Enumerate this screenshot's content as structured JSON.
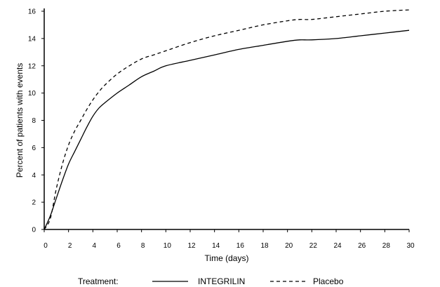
{
  "chart_data": {
    "type": "line",
    "title": "",
    "xlabel": "Time (days)",
    "ylabel": "Percent of patients with events",
    "xlim": [
      0,
      30
    ],
    "ylim": [
      0,
      16
    ],
    "xticks": [
      0,
      2,
      4,
      6,
      8,
      10,
      12,
      14,
      16,
      18,
      20,
      22,
      24,
      26,
      28,
      30
    ],
    "yticks": [
      0,
      2,
      4,
      6,
      8,
      10,
      12,
      14,
      16
    ],
    "grid": false,
    "legend": {
      "placement": "bottom",
      "title": "Treatment:"
    },
    "series": [
      {
        "name": "INTEGRILIN",
        "style": "solid",
        "color": "#000000",
        "x": [
          0,
          0.5,
          1,
          1.5,
          2,
          2.5,
          3,
          3.5,
          4,
          4.5,
          5,
          6,
          7,
          8,
          9,
          10,
          12,
          14,
          16,
          18,
          20,
          21,
          22,
          24,
          26,
          28,
          30
        ],
        "y": [
          0,
          1.0,
          2.3,
          3.6,
          4.8,
          5.7,
          6.6,
          7.5,
          8.3,
          8.9,
          9.3,
          10.0,
          10.6,
          11.2,
          11.6,
          12.0,
          12.4,
          12.8,
          13.2,
          13.5,
          13.8,
          13.9,
          13.9,
          14.0,
          14.2,
          14.4,
          14.6
        ]
      },
      {
        "name": "Placebo",
        "style": "dashed",
        "color": "#000000",
        "x": [
          0,
          0.5,
          1,
          1.5,
          2,
          2.5,
          3,
          3.5,
          4,
          4.5,
          5,
          6,
          7,
          8,
          9,
          10,
          12,
          14,
          16,
          18,
          20,
          21,
          22,
          24,
          26,
          28,
          30
        ],
        "y": [
          0,
          0.8,
          3.0,
          4.8,
          6.2,
          7.2,
          8.0,
          8.8,
          9.5,
          10.1,
          10.6,
          11.4,
          12.0,
          12.5,
          12.8,
          13.1,
          13.7,
          14.2,
          14.6,
          15.0,
          15.3,
          15.4,
          15.4,
          15.6,
          15.8,
          16.0,
          16.1
        ]
      }
    ]
  }
}
